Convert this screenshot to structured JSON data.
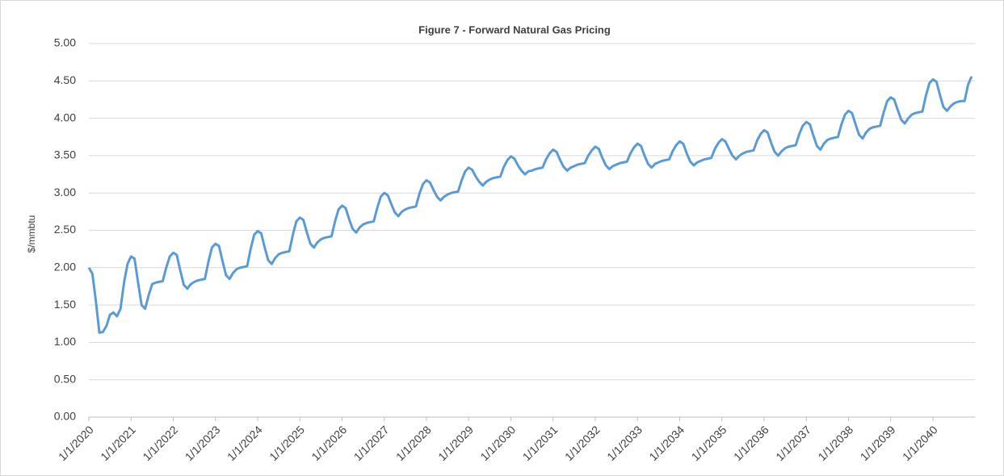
{
  "chart_data": {
    "type": "line",
    "title": "Figure 7 - Forward Natural Gas Pricing",
    "y_label": "$/mmbtu",
    "categories": [
      "1/1/2020",
      null,
      null,
      null,
      null,
      null,
      null,
      null,
      null,
      null,
      null,
      null,
      "1/1/2021",
      null,
      null,
      null,
      null,
      null,
      null,
      null,
      null,
      null,
      null,
      null,
      "1/1/2022",
      null,
      null,
      null,
      null,
      null,
      null,
      null,
      null,
      null,
      null,
      null,
      "1/1/2023",
      null,
      null,
      null,
      null,
      null,
      null,
      null,
      null,
      null,
      null,
      null,
      "1/1/2024",
      null,
      null,
      null,
      null,
      null,
      null,
      null,
      null,
      null,
      null,
      null,
      "1/1/2025",
      null,
      null,
      null,
      null,
      null,
      null,
      null,
      null,
      null,
      null,
      null,
      "1/1/2026",
      null,
      null,
      null,
      null,
      null,
      null,
      null,
      null,
      null,
      null,
      null,
      "1/1/2027",
      null,
      null,
      null,
      null,
      null,
      null,
      null,
      null,
      null,
      null,
      null,
      "1/1/2028",
      null,
      null,
      null,
      null,
      null,
      null,
      null,
      null,
      null,
      null,
      null,
      "1/1/2029",
      null,
      null,
      null,
      null,
      null,
      null,
      null,
      null,
      null,
      null,
      null,
      "1/1/2030",
      null,
      null,
      null,
      null,
      null,
      null,
      null,
      null,
      null,
      null,
      null,
      "1/1/2031",
      null,
      null,
      null,
      null,
      null,
      null,
      null,
      null,
      null,
      null,
      null,
      "1/1/2032",
      null,
      null,
      null,
      null,
      null,
      null,
      null,
      null,
      null,
      null,
      null,
      "1/1/2033",
      null,
      null,
      null,
      null,
      null,
      null,
      null,
      null,
      null,
      null,
      null,
      "1/1/2034",
      null,
      null,
      null,
      null,
      null,
      null,
      null,
      null,
      null,
      null,
      null,
      "1/1/2035",
      null,
      null,
      null,
      null,
      null,
      null,
      null,
      null,
      null,
      null,
      null,
      "1/1/2036",
      null,
      null,
      null,
      null,
      null,
      null,
      null,
      null,
      null,
      null,
      null,
      "1/1/2037",
      null,
      null,
      null,
      null,
      null,
      null,
      null,
      null,
      null,
      null,
      null,
      "1/1/2038",
      null,
      null,
      null,
      null,
      null,
      null,
      null,
      null,
      null,
      null,
      null,
      "1/1/2039",
      null,
      null,
      null,
      null,
      null,
      null,
      null,
      null,
      null,
      null,
      null,
      "1/1/2040",
      null,
      null,
      null,
      null,
      null,
      null,
      null,
      null,
      null,
      null,
      null
    ],
    "series": [
      {
        "color": "#5b9bd5",
        "values": [
          2.0,
          1.92,
          1.55,
          1.13,
          1.14,
          1.22,
          1.37,
          1.4,
          1.35,
          1.45,
          1.8,
          2.05,
          2.15,
          2.12,
          1.8,
          1.5,
          1.45,
          1.63,
          1.78,
          1.8,
          1.81,
          1.82,
          2.0,
          2.15,
          2.2,
          2.17,
          1.96,
          1.77,
          1.72,
          1.78,
          1.81,
          1.83,
          1.84,
          1.85,
          2.08,
          2.27,
          2.32,
          2.29,
          2.09,
          1.9,
          1.85,
          1.93,
          1.98,
          2.0,
          2.01,
          2.02,
          2.25,
          2.44,
          2.49,
          2.46,
          2.27,
          2.1,
          2.05,
          2.13,
          2.18,
          2.2,
          2.21,
          2.22,
          2.44,
          2.62,
          2.67,
          2.64,
          2.47,
          2.32,
          2.27,
          2.34,
          2.38,
          2.4,
          2.41,
          2.42,
          2.62,
          2.78,
          2.83,
          2.8,
          2.65,
          2.52,
          2.47,
          2.54,
          2.58,
          2.6,
          2.61,
          2.62,
          2.8,
          2.95,
          3.0,
          2.97,
          2.85,
          2.74,
          2.69,
          2.75,
          2.78,
          2.8,
          2.81,
          2.82,
          2.99,
          3.12,
          3.17,
          3.14,
          3.04,
          2.95,
          2.9,
          2.95,
          2.98,
          3.0,
          3.01,
          3.02,
          3.17,
          3.29,
          3.34,
          3.31,
          3.22,
          3.15,
          3.1,
          3.15,
          3.18,
          3.2,
          3.21,
          3.22,
          3.35,
          3.44,
          3.49,
          3.46,
          3.37,
          3.3,
          3.25,
          3.29,
          3.3,
          3.32,
          3.33,
          3.34,
          3.45,
          3.53,
          3.58,
          3.55,
          3.44,
          3.35,
          3.3,
          3.34,
          3.36,
          3.38,
          3.39,
          3.4,
          3.5,
          3.57,
          3.62,
          3.59,
          3.47,
          3.37,
          3.32,
          3.36,
          3.38,
          3.4,
          3.41,
          3.42,
          3.53,
          3.61,
          3.66,
          3.63,
          3.5,
          3.39,
          3.34,
          3.39,
          3.41,
          3.43,
          3.44,
          3.45,
          3.56,
          3.64,
          3.69,
          3.66,
          3.53,
          3.42,
          3.37,
          3.41,
          3.43,
          3.45,
          3.46,
          3.47,
          3.59,
          3.67,
          3.72,
          3.69,
          3.59,
          3.5,
          3.45,
          3.5,
          3.53,
          3.55,
          3.56,
          3.57,
          3.7,
          3.79,
          3.84,
          3.81,
          3.67,
          3.55,
          3.5,
          3.56,
          3.6,
          3.62,
          3.63,
          3.64,
          3.79,
          3.9,
          3.95,
          3.92,
          3.77,
          3.63,
          3.58,
          3.66,
          3.71,
          3.73,
          3.74,
          3.75,
          3.92,
          4.05,
          4.1,
          4.07,
          3.92,
          3.78,
          3.73,
          3.81,
          3.86,
          3.88,
          3.89,
          3.9,
          4.08,
          4.23,
          4.28,
          4.25,
          4.11,
          3.98,
          3.93,
          4.0,
          4.05,
          4.07,
          4.08,
          4.09,
          4.3,
          4.47,
          4.52,
          4.49,
          4.31,
          4.15,
          4.1,
          4.16,
          4.2,
          4.22,
          4.23,
          4.23,
          4.45,
          4.56
        ]
      }
    ],
    "ylim": [
      0,
      5
    ],
    "yticks": [
      {
        "value": 0,
        "label": "0.00"
      },
      {
        "value": 0.5,
        "label": "0.50"
      },
      {
        "value": 1,
        "label": "1.00"
      },
      {
        "value": 1.5,
        "label": "1.50"
      },
      {
        "value": 2,
        "label": "2.00"
      },
      {
        "value": 2.5,
        "label": "2.50"
      },
      {
        "value": 3,
        "label": "3.00"
      },
      {
        "value": 3.5,
        "label": "3.50"
      },
      {
        "value": 4,
        "label": "4.00"
      },
      {
        "value": 4.5,
        "label": "4.50"
      },
      {
        "value": 5,
        "label": "5.00"
      }
    ],
    "grid": true
  }
}
